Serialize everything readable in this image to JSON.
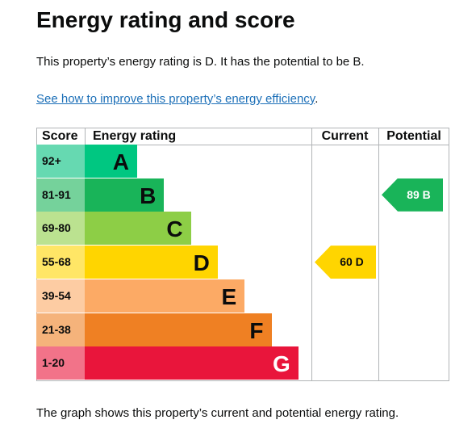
{
  "title": "Energy rating and score",
  "intro": "This property’s energy rating is D. It has the potential to be B.",
  "link": {
    "text": "See how to improve this property’s energy efficiency",
    "suffix": "."
  },
  "chart": {
    "headers": {
      "score": "Score",
      "rating": "Energy rating",
      "current": "Current",
      "potential": "Potential"
    },
    "bands": [
      {
        "score": "92+",
        "letter": "A",
        "color": "#00c781",
        "light": "#66d9b1"
      },
      {
        "score": "81-91",
        "letter": "B",
        "color": "#19b459",
        "light": "#75d29b"
      },
      {
        "score": "69-80",
        "letter": "C",
        "color": "#8dce46",
        "light": "#bbe290"
      },
      {
        "score": "55-68",
        "letter": "D",
        "color": "#ffd500",
        "light": "#ffe666"
      },
      {
        "score": "39-54",
        "letter": "E",
        "color": "#fcaa65",
        "light": "#fdcca3"
      },
      {
        "score": "21-38",
        "letter": "F",
        "color": "#ef8023",
        "light": "#f5b37b"
      },
      {
        "score": "1-20",
        "letter": "G",
        "color": "#e9153b",
        "light": "#f27389"
      }
    ],
    "current": {
      "label": "60 D",
      "band": 3,
      "color": "#ffd500"
    },
    "potential": {
      "label": "89 B",
      "band": 1,
      "color": "#19b459"
    }
  },
  "footer": "The graph shows this property’s current and potential energy rating."
}
